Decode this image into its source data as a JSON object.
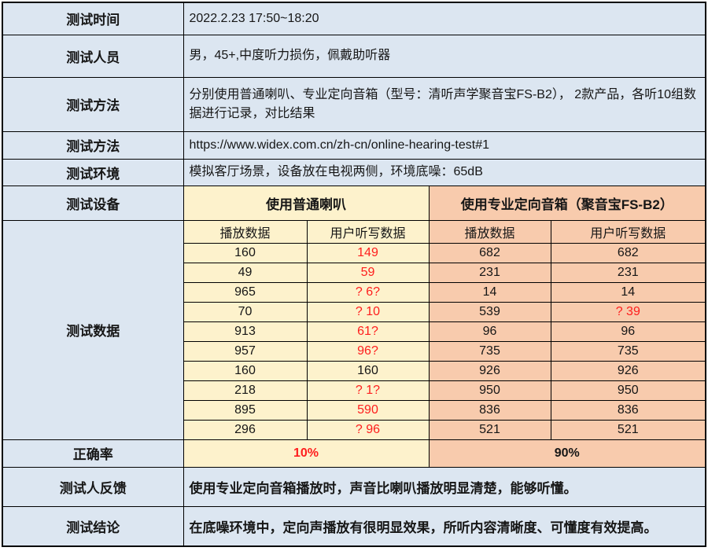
{
  "colors": {
    "label_column_bg": "#dce6f1",
    "ordinary_speaker_bg": "#fdf2cc",
    "directional_speaker_bg": "#f8cbad",
    "error_text_red": "#fe1d1d",
    "border": "#000000"
  },
  "table": {
    "info_rows": [
      {
        "label": "测试时间",
        "content": "2022.2.23 17:50~18:20"
      },
      {
        "label": "测试人员",
        "content": "男，45+,中度听力损伤，佩戴助听器"
      },
      {
        "label": "测试方法",
        "content": "分别使用普通喇叭、专业定向音箱（型号：清听声学聚音宝FS-B2）， 2款产品，各听10组数据进行记录，对比结果"
      },
      {
        "label": "测试方法",
        "content": "https://www.widex.com.cn/zh-cn/online-hearing-test#1"
      },
      {
        "label": "测试环境",
        "content": "模拟客厅场景，设备放在电视两侧，环境底噪：65dB"
      }
    ],
    "device_row": {
      "label": "测试设备",
      "speaker_header": "使用普通喇叭",
      "directional_header": "使用专业定向音箱（聚音宝FS-B2）"
    },
    "data_section": {
      "label": "测试数据",
      "columns": [
        "播放数据",
        "用户听写数据",
        "播放数据",
        "用户听写数据"
      ],
      "rows": [
        {
          "speaker_play": "160",
          "speaker_heard": "149",
          "speaker_heard_wrong": true,
          "dir_play": "682",
          "dir_heard": "682",
          "dir_heard_wrong": false
        },
        {
          "speaker_play": "49",
          "speaker_heard": "59",
          "speaker_heard_wrong": true,
          "dir_play": "231",
          "dir_heard": "231",
          "dir_heard_wrong": false
        },
        {
          "speaker_play": "965",
          "speaker_heard": "? 6?",
          "speaker_heard_wrong": true,
          "dir_play": "14",
          "dir_heard": "14",
          "dir_heard_wrong": false
        },
        {
          "speaker_play": "70",
          "speaker_heard": "? 10",
          "speaker_heard_wrong": true,
          "dir_play": "539",
          "dir_heard": "? 39",
          "dir_heard_wrong": true
        },
        {
          "speaker_play": "913",
          "speaker_heard": "61?",
          "speaker_heard_wrong": true,
          "dir_play": "96",
          "dir_heard": "96",
          "dir_heard_wrong": false
        },
        {
          "speaker_play": "957",
          "speaker_heard": "96?",
          "speaker_heard_wrong": true,
          "dir_play": "735",
          "dir_heard": "735",
          "dir_heard_wrong": false
        },
        {
          "speaker_play": "160",
          "speaker_heard": "160",
          "speaker_heard_wrong": false,
          "dir_play": "926",
          "dir_heard": "926",
          "dir_heard_wrong": false
        },
        {
          "speaker_play": "218",
          "speaker_heard": "? 1?",
          "speaker_heard_wrong": true,
          "dir_play": "950",
          "dir_heard": "950",
          "dir_heard_wrong": false
        },
        {
          "speaker_play": "895",
          "speaker_heard": "590",
          "speaker_heard_wrong": true,
          "dir_play": "836",
          "dir_heard": "836",
          "dir_heard_wrong": false
        },
        {
          "speaker_play": "296",
          "speaker_heard": "? 96",
          "speaker_heard_wrong": true,
          "dir_play": "521",
          "dir_heard": "521",
          "dir_heard_wrong": false
        }
      ]
    },
    "accuracy_row": {
      "label": "正确率",
      "speaker_accuracy": "10%",
      "directional_accuracy": "90%"
    },
    "feedback_row": {
      "label": "测试人反馈",
      "content": "使用专业定向音箱播放时，声音比喇叭播放明显清楚，能够听懂。"
    },
    "conclusion_row": {
      "label": "测试结论",
      "content": "在底噪环境中，定向声播放有很明显效果，所听内容清晰度、可懂度有效提高。"
    }
  }
}
